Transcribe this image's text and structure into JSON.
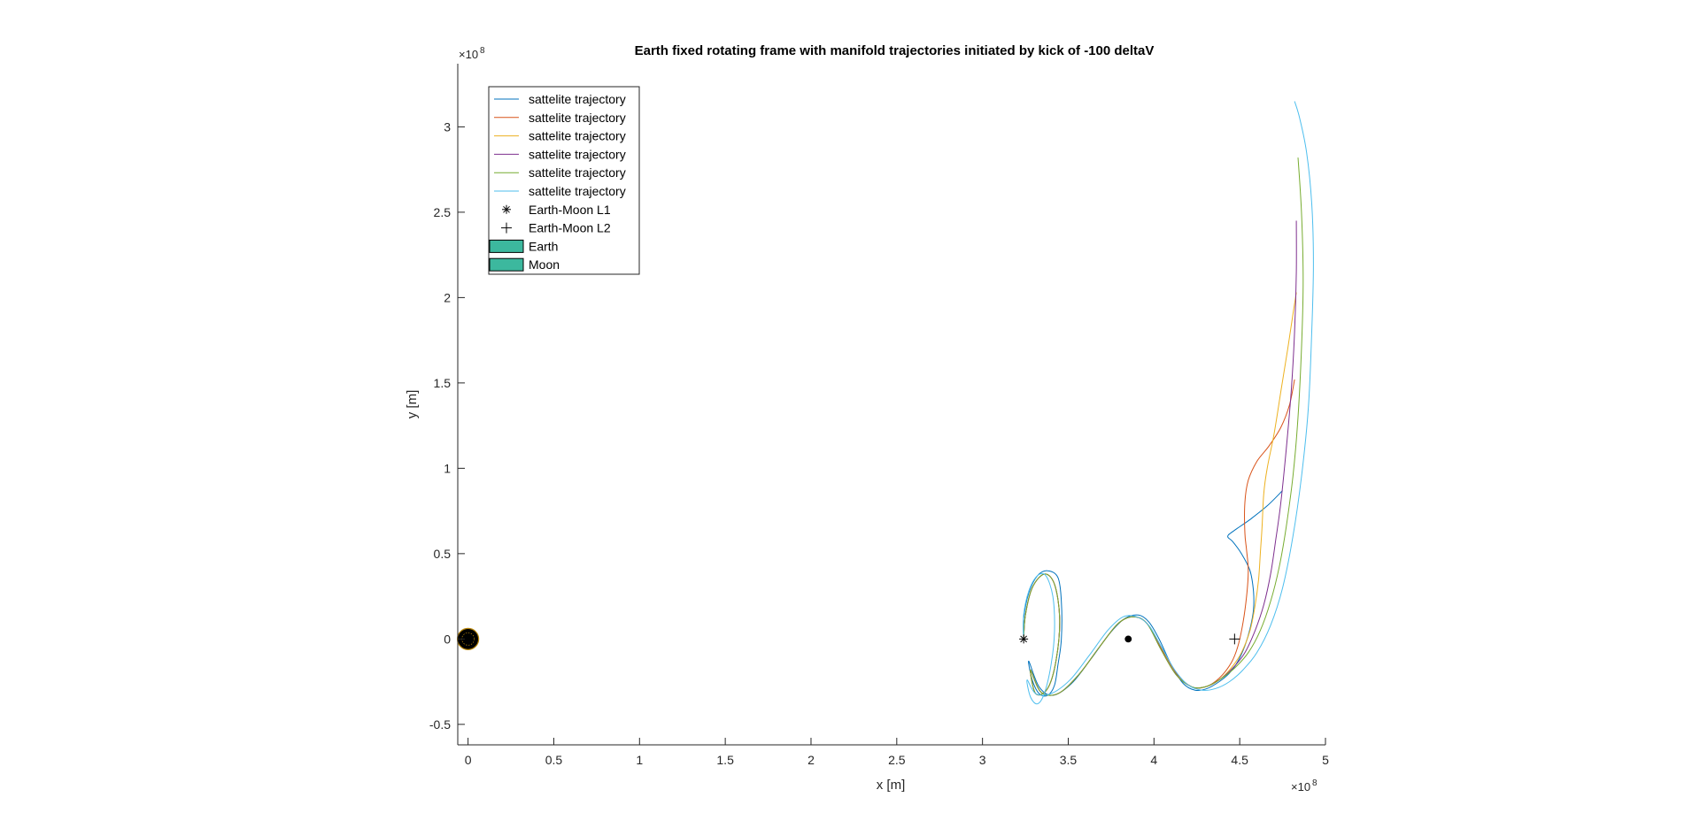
{
  "chart_data": {
    "type": "line",
    "title": "Earth fixed rotating frame with manifold trajectories initiated by kick of -100 deltaV",
    "xlabel": "x [m]",
    "ylabel": "y [m]",
    "x_exponent_label": "×10",
    "x_exponent_power": "8",
    "y_exponent_label": "×10",
    "y_exponent_power": "8",
    "xlim": [
      -0.06,
      5.0
    ],
    "ylim": [
      -0.62,
      3.37
    ],
    "x_scale_note": "values in units of 1e8 m",
    "xticks": [
      0,
      0.5,
      1,
      1.5,
      2,
      2.5,
      3,
      3.5,
      4,
      4.5,
      5
    ],
    "xtick_labels": [
      "0",
      "0.5",
      "1",
      "1.5",
      "2",
      "2.5",
      "3",
      "3.5",
      "4",
      "4.5",
      "5"
    ],
    "yticks": [
      -0.5,
      0,
      0.5,
      1,
      1.5,
      2,
      2.5,
      3
    ],
    "ytick_labels": [
      "-0.5",
      "0",
      "0.5",
      "1",
      "1.5",
      "2",
      "2.5",
      "3"
    ],
    "grid": false,
    "legend_position": "top-left",
    "colors": [
      "#0072BD",
      "#D95319",
      "#EDB120",
      "#7E2F8E",
      "#77AC30",
      "#4DBEEE"
    ],
    "series": [
      {
        "name": "sattelite trajectory",
        "color": "#0072BD",
        "x": [
          3.24,
          3.24,
          3.27,
          3.32,
          3.38,
          3.44,
          3.46,
          3.46,
          3.44,
          3.42,
          3.38,
          3.33,
          3.29,
          3.27,
          3.33,
          3.41,
          3.52,
          3.63,
          3.74,
          3.83,
          3.91,
          3.97,
          4.03,
          4.1,
          4.17,
          4.24,
          4.31,
          4.38,
          4.44,
          4.49,
          4.53,
          4.56,
          4.58,
          4.58,
          4.56,
          4.51,
          4.46,
          4.43,
          4.46,
          4.56,
          4.66,
          4.75
        ],
        "y": [
          0.0,
          0.12,
          0.27,
          0.37,
          0.4,
          0.36,
          0.22,
          0.0,
          -0.15,
          -0.27,
          -0.33,
          -0.32,
          -0.24,
          -0.13,
          -0.28,
          -0.33,
          -0.26,
          -0.12,
          0.03,
          0.12,
          0.14,
          0.1,
          0.0,
          -0.15,
          -0.26,
          -0.3,
          -0.29,
          -0.25,
          -0.2,
          -0.13,
          -0.04,
          0.06,
          0.17,
          0.28,
          0.4,
          0.5,
          0.57,
          0.6,
          0.63,
          0.7,
          0.78,
          0.87
        ]
      },
      {
        "name": "sattelite trajectory",
        "color": "#D95319",
        "x": [
          3.24,
          3.25,
          3.29,
          3.36,
          3.42,
          3.45,
          3.43,
          3.38,
          3.31,
          3.28,
          3.34,
          3.44,
          3.56,
          3.68,
          3.79,
          3.88,
          3.96,
          4.04,
          4.13,
          4.22,
          4.3,
          4.38,
          4.45,
          4.49,
          4.52,
          4.54,
          4.55,
          4.54,
          4.53,
          4.53,
          4.55,
          4.6,
          4.67,
          4.74,
          4.79,
          4.82
        ],
        "y": [
          0.0,
          0.14,
          0.3,
          0.38,
          0.32,
          0.12,
          -0.12,
          -0.29,
          -0.32,
          -0.18,
          -0.31,
          -0.32,
          -0.21,
          -0.05,
          0.09,
          0.13,
          0.09,
          -0.05,
          -0.2,
          -0.28,
          -0.28,
          -0.23,
          -0.14,
          -0.04,
          0.1,
          0.25,
          0.4,
          0.52,
          0.62,
          0.8,
          0.93,
          1.04,
          1.13,
          1.24,
          1.37,
          1.52
        ]
      },
      {
        "name": "sattelite trajectory",
        "color": "#EDB120",
        "x": [
          3.24,
          3.25,
          3.29,
          3.36,
          3.42,
          3.45,
          3.43,
          3.38,
          3.31,
          3.28,
          3.34,
          3.44,
          3.56,
          3.68,
          3.79,
          3.88,
          3.96,
          4.04,
          4.13,
          4.22,
          4.3,
          4.38,
          4.45,
          4.51,
          4.56,
          4.59,
          4.61,
          4.62,
          4.63,
          4.64,
          4.66,
          4.7,
          4.74,
          4.78,
          4.81,
          4.83
        ],
        "y": [
          0.0,
          0.14,
          0.3,
          0.38,
          0.32,
          0.12,
          -0.12,
          -0.29,
          -0.32,
          -0.18,
          -0.31,
          -0.32,
          -0.21,
          -0.05,
          0.09,
          0.13,
          0.09,
          -0.06,
          -0.21,
          -0.28,
          -0.28,
          -0.24,
          -0.17,
          -0.08,
          0.05,
          0.2,
          0.35,
          0.5,
          0.65,
          0.85,
          1.0,
          1.2,
          1.45,
          1.7,
          1.9,
          2.03
        ]
      },
      {
        "name": "sattelite trajectory",
        "color": "#7E2F8E",
        "x": [
          3.24,
          3.25,
          3.29,
          3.36,
          3.42,
          3.45,
          3.43,
          3.38,
          3.31,
          3.28,
          3.34,
          3.44,
          3.56,
          3.68,
          3.79,
          3.88,
          3.96,
          4.04,
          4.13,
          4.22,
          4.3,
          4.38,
          4.46,
          4.53,
          4.59,
          4.64,
          4.68,
          4.71,
          4.74,
          4.77,
          4.8,
          4.82,
          4.83,
          4.83
        ],
        "y": [
          0.0,
          0.14,
          0.3,
          0.38,
          0.32,
          0.12,
          -0.12,
          -0.29,
          -0.32,
          -0.18,
          -0.31,
          -0.32,
          -0.21,
          -0.05,
          0.09,
          0.13,
          0.09,
          -0.06,
          -0.21,
          -0.28,
          -0.28,
          -0.24,
          -0.17,
          -0.08,
          0.05,
          0.2,
          0.38,
          0.58,
          0.8,
          1.1,
          1.45,
          1.8,
          2.15,
          2.45
        ]
      },
      {
        "name": "sattelite trajectory",
        "color": "#77AC30",
        "x": [
          3.24,
          3.25,
          3.29,
          3.36,
          3.42,
          3.45,
          3.43,
          3.38,
          3.31,
          3.28,
          3.34,
          3.44,
          3.56,
          3.68,
          3.79,
          3.88,
          3.96,
          4.04,
          4.13,
          4.22,
          4.3,
          4.38,
          4.47,
          4.55,
          4.62,
          4.68,
          4.73,
          4.77,
          4.81,
          4.84,
          4.86,
          4.87,
          4.86,
          4.84
        ],
        "y": [
          0.0,
          0.14,
          0.3,
          0.38,
          0.32,
          0.12,
          -0.12,
          -0.29,
          -0.32,
          -0.18,
          -0.31,
          -0.32,
          -0.21,
          -0.05,
          0.09,
          0.13,
          0.09,
          -0.06,
          -0.21,
          -0.28,
          -0.28,
          -0.24,
          -0.17,
          -0.08,
          0.05,
          0.22,
          0.42,
          0.65,
          0.95,
          1.3,
          1.7,
          2.1,
          2.5,
          2.82
        ]
      },
      {
        "name": "sattelite trajectory",
        "color": "#4DBEEE",
        "x": [
          3.24,
          3.24,
          3.27,
          3.32,
          3.37,
          3.41,
          3.42,
          3.4,
          3.36,
          3.32,
          3.28,
          3.26,
          3.31,
          3.4,
          3.51,
          3.62,
          3.73,
          3.82,
          3.9,
          3.97,
          4.04,
          4.12,
          4.2,
          4.28,
          4.36,
          4.44,
          4.52,
          4.6,
          4.68,
          4.75,
          4.81,
          4.86,
          4.9,
          4.92,
          4.93,
          4.92,
          4.89,
          4.85,
          4.82
        ],
        "y": [
          0.0,
          0.14,
          0.28,
          0.37,
          0.37,
          0.25,
          0.05,
          -0.15,
          -0.32,
          -0.38,
          -0.34,
          -0.24,
          -0.32,
          -0.32,
          -0.24,
          -0.1,
          0.05,
          0.13,
          0.13,
          0.08,
          -0.04,
          -0.18,
          -0.27,
          -0.3,
          -0.29,
          -0.25,
          -0.18,
          -0.08,
          0.08,
          0.3,
          0.6,
          0.95,
          1.35,
          1.8,
          2.2,
          2.55,
          2.85,
          3.05,
          3.15
        ]
      }
    ],
    "markers": [
      {
        "name": "Earth-Moon L1",
        "symbol": "*",
        "x": 3.24,
        "y": 0.0
      },
      {
        "name": "Earth-Moon L2",
        "symbol": "+",
        "x": 4.47,
        "y": 0.0
      }
    ],
    "bodies": [
      {
        "name": "Earth",
        "x": 0.0,
        "y": 0.0,
        "fill": "#000000",
        "outline": "#B8860B",
        "legend_fill": "#3CB89E"
      },
      {
        "name": "Moon",
        "x": 3.85,
        "y": 0.0,
        "fill": "#000000",
        "outline": "#000000",
        "legend_fill": "#3CB89E"
      }
    ],
    "legend": [
      {
        "label": "sattelite trajectory",
        "kind": "line",
        "color": "#0072BD"
      },
      {
        "label": "sattelite trajectory",
        "kind": "line",
        "color": "#D95319"
      },
      {
        "label": "sattelite trajectory",
        "kind": "line",
        "color": "#EDB120"
      },
      {
        "label": "sattelite trajectory",
        "kind": "line",
        "color": "#7E2F8E"
      },
      {
        "label": "sattelite trajectory",
        "kind": "line",
        "color": "#77AC30"
      },
      {
        "label": "sattelite trajectory",
        "kind": "line",
        "color": "#4DBEEE"
      },
      {
        "label": "Earth-Moon L1",
        "kind": "asterisk",
        "color": "#000000"
      },
      {
        "label": "Earth-Moon L2",
        "kind": "plus",
        "color": "#000000"
      },
      {
        "label": "Earth",
        "kind": "patch",
        "color": "#3CB89E"
      },
      {
        "label": "Moon",
        "kind": "patch",
        "color": "#3CB89E"
      }
    ]
  }
}
